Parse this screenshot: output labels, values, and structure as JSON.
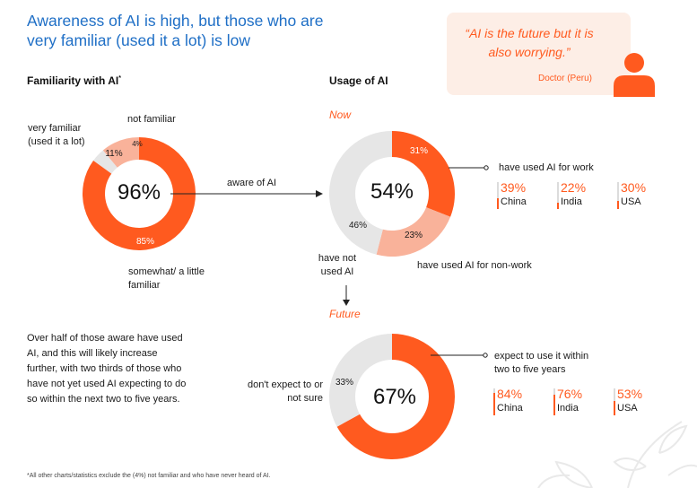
{
  "title": "Awareness of AI is high, but those who are very familiar (used it a lot) is low",
  "quote": {
    "text": "“AI is the future but it is also worrying.”",
    "author": "Doctor (Peru)"
  },
  "familiarity": {
    "heading": "Familiarity with AI",
    "heading_mark": "*",
    "center_value": "96%",
    "labels": {
      "not_familiar": "not familiar",
      "very_familiar": "very familiar (used it a lot)",
      "somewhat": "somewhat/ a little familiar"
    },
    "slice_labels": {
      "not_familiar": "4%",
      "very_familiar": "11%",
      "somewhat": "85%"
    },
    "arrow_label": "aware of AI"
  },
  "usage": {
    "heading": "Usage of AI",
    "now_label": "Now",
    "now_center": "54%",
    "now_slice_labels": {
      "work": "31%",
      "non_work": "23%",
      "not_used": "46%"
    },
    "work_label": "have used AI for work",
    "non_work_label": "have used AI for non-work",
    "not_used_label": "have not used AI",
    "work_by_country": [
      {
        "pct": "39%",
        "country": "China"
      },
      {
        "pct": "22%",
        "country": "India"
      },
      {
        "pct": "30%",
        "country": "USA"
      }
    ],
    "future_label": "Future",
    "future_center": "67%",
    "future_slice_labels": {
      "no": "33%"
    },
    "expect_label": "expect to use it within two to five years",
    "dont_expect_label": "don't expect to or not sure",
    "future_by_country": [
      {
        "pct": "84%",
        "country": "China"
      },
      {
        "pct": "76%",
        "country": "India"
      },
      {
        "pct": "53%",
        "country": "USA"
      }
    ]
  },
  "body_text": "Over half of those aware have used AI, and this will likely increase further, with two thirds of those who have not yet used AI expecting to do so within the next two to five years.",
  "footnote": "*All other charts/statistics exclude the (4%) not familiar and who have never heard of AI.",
  "colors": {
    "orange": "#ff5a1f",
    "light_orange": "#f9b29a",
    "grey": "#e6e6e6",
    "blue": "#1f6fc6"
  },
  "chart_data": [
    {
      "type": "pie",
      "title": "Familiarity with AI",
      "categories": [
        "not familiar",
        "very familiar (used it a lot)",
        "somewhat/ a little familiar"
      ],
      "values": [
        4,
        11,
        85
      ],
      "center_label": "96%"
    },
    {
      "type": "pie",
      "title": "Usage of AI - Now",
      "categories": [
        "have used AI for work",
        "have used AI for non-work",
        "have not used AI"
      ],
      "values": [
        31,
        23,
        46
      ],
      "center_label": "54%"
    },
    {
      "type": "bar",
      "title": "have used AI for work",
      "categories": [
        "China",
        "India",
        "USA"
      ],
      "values": [
        39,
        22,
        30
      ],
      "ylim": [
        0,
        100
      ]
    },
    {
      "type": "pie",
      "title": "Usage of AI - Future",
      "categories": [
        "expect to use it within two to five years",
        "don't expect to or not sure"
      ],
      "values": [
        67,
        33
      ],
      "center_label": "67%"
    },
    {
      "type": "bar",
      "title": "expect to use it within two to five years",
      "categories": [
        "China",
        "India",
        "USA"
      ],
      "values": [
        84,
        76,
        53
      ],
      "ylim": [
        0,
        100
      ]
    }
  ]
}
